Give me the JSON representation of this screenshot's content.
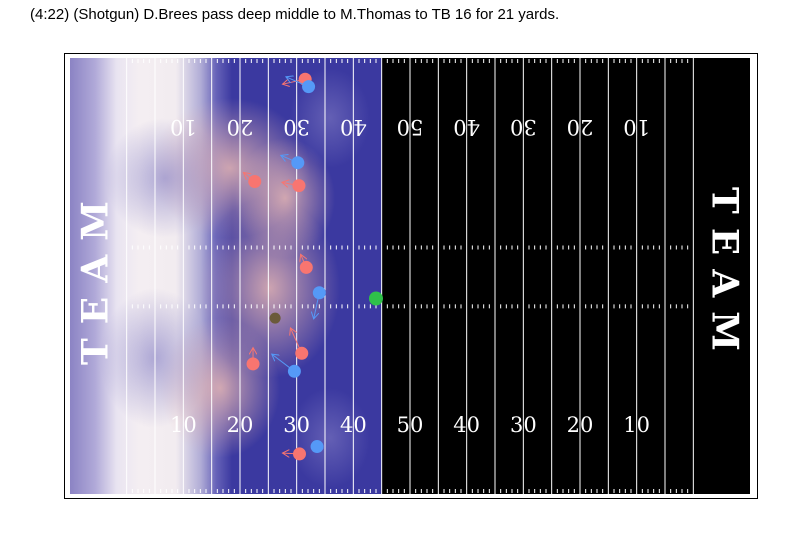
{
  "play": {
    "description": "(4:22) (Shotgun) D.Brees pass deep middle to M.Thomas to TB 16 for 21 yards."
  },
  "colors": {
    "field_dark": "#000000",
    "endzone_fill": "#000000",
    "heat_warm": "#e9b9b6",
    "heat_cool": "#3b39a0",
    "offense_marker": "#f87570",
    "defense_marker": "#5599f7",
    "ball_marker": "#2fc04a",
    "qb_marker": "#6b5a3a",
    "line_color": "#ffffff"
  },
  "chart_data": {
    "type": "scatter",
    "xlabel": "",
    "ylabel": "",
    "xlim": [
      -10,
      110
    ],
    "ylim": [
      0,
      53.3
    ],
    "endzone_labels": [
      "TEAM",
      "TEAM"
    ],
    "yard_numbers_bottom": [
      "10",
      "20",
      "30",
      "40",
      "50",
      "40",
      "30",
      "20",
      "10"
    ],
    "yard_numbers_top": [
      "10",
      "20",
      "30",
      "40",
      "50",
      "40",
      "30",
      "20",
      "10"
    ],
    "line_of_scrimmage": 63,
    "players": [
      {
        "team": "offense",
        "x": 31.5,
        "y": 50.7,
        "dx": -4,
        "dy": -0.6
      },
      {
        "team": "offense",
        "x": 22.6,
        "y": 38.2,
        "dx": -2,
        "dy": 1.1
      },
      {
        "team": "offense",
        "x": 30.4,
        "y": 37.7,
        "dx": -3,
        "dy": 0.4
      },
      {
        "team": "offense",
        "x": 31.7,
        "y": 27.7,
        "dx": -1,
        "dy": 1.6
      },
      {
        "team": "offense",
        "x": 30.9,
        "y": 17.2,
        "dx": -2,
        "dy": 3.1
      },
      {
        "team": "offense",
        "x": 22.3,
        "y": 15.9,
        "dx": 0,
        "dy": 2.0
      },
      {
        "team": "offense",
        "x": 30.5,
        "y": 4.9,
        "dx": -3,
        "dy": 0.1
      },
      {
        "team": "defense",
        "x": 32.1,
        "y": 49.8,
        "dx": -4,
        "dy": 1.2
      },
      {
        "team": "defense",
        "x": 30.2,
        "y": 40.5,
        "dx": -3,
        "dy": 0.9
      },
      {
        "team": "defense",
        "x": 34.0,
        "y": 24.6,
        "dx": -1,
        "dy": -3.2
      },
      {
        "team": "defense",
        "x": 29.6,
        "y": 15.0,
        "dx": -4,
        "dy": 2.1
      },
      {
        "team": "defense",
        "x": 33.6,
        "y": 5.8,
        "dx": 1,
        "dy": -0.2
      }
    ],
    "qb": {
      "x": 26.2,
      "y": 21.5
    },
    "ball": {
      "x": 44.0,
      "y": 23.9
    }
  }
}
